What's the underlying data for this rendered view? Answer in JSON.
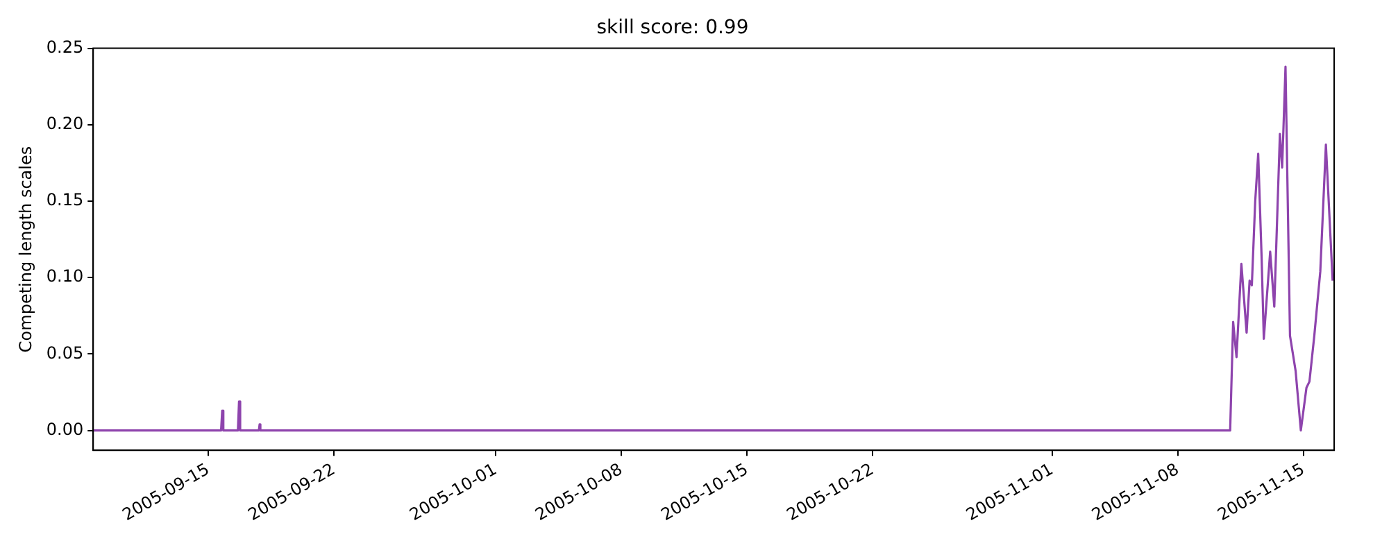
{
  "chart_data": {
    "type": "line",
    "title": "skill score: 0.99",
    "ylabel": "Competing length scales",
    "x": [
      "2005-09-08T14:00",
      "2005-09-15T17:00",
      "2005-09-15T18:30",
      "2005-09-15T20:00",
      "2005-09-16T15:30",
      "2005-09-16T17:00",
      "2005-09-16T18:30",
      "2005-09-17T19:30",
      "2005-09-17T20:30",
      "2005-09-17T21:30",
      "2005-11-10T22:00",
      "2005-11-11T02:00",
      "2005-11-11T06:30",
      "2005-11-11T13:00",
      "2005-11-11T20:00",
      "2005-11-12T00:00",
      "2005-11-12T03:00",
      "2005-11-12T07:30",
      "2005-11-12T11:30",
      "2005-11-12T16:00",
      "2005-11-12T19:00",
      "2005-11-13T03:30",
      "2005-11-13T09:00",
      "2005-11-13T16:30",
      "2005-11-13T19:30",
      "2005-11-14T00:00",
      "2005-11-14T06:00",
      "2005-11-14T13:30",
      "2005-11-14T20:30",
      "2005-11-15T04:00",
      "2005-11-15T08:00",
      "2005-11-15T14:30",
      "2005-11-15T22:30",
      "2005-11-16T06:00",
      "2005-11-16T15:00"
    ],
    "series": [
      {
        "color": "#8e44ad",
        "values": [
          0,
          0,
          0.013,
          0,
          0,
          0.019,
          0,
          0,
          0.004,
          0,
          0,
          0.071,
          0.048,
          0.109,
          0.064,
          0.098,
          0.095,
          0.15,
          0.181,
          0.114,
          0.06,
          0.117,
          0.081,
          0.194,
          0.172,
          0.238,
          0.062,
          0.039,
          0,
          0.028,
          0.032,
          0.062,
          0.104,
          0.187,
          0.098
        ]
      }
    ],
    "xlim": [
      "2005-09-08T14:00",
      "2005-11-16T17:00"
    ],
    "xticks": [
      "2005-09-15",
      "2005-09-22",
      "2005-10-01",
      "2005-10-08",
      "2005-10-15",
      "2005-10-22",
      "2005-11-01",
      "2005-11-08",
      "2005-11-15"
    ],
    "ylim": [
      -0.013,
      0.25
    ],
    "yticks": [
      {
        "value": 0,
        "label": "0.00"
      },
      {
        "value": 0.05,
        "label": "0.05"
      },
      {
        "value": 0.1,
        "label": "0.10"
      },
      {
        "value": 0.15,
        "label": "0.15"
      },
      {
        "value": 0.2,
        "label": "0.20"
      },
      {
        "value": 0.25,
        "label": "0.25"
      }
    ],
    "grid": false,
    "legend": false,
    "marker": "none",
    "line_style": "solid"
  }
}
